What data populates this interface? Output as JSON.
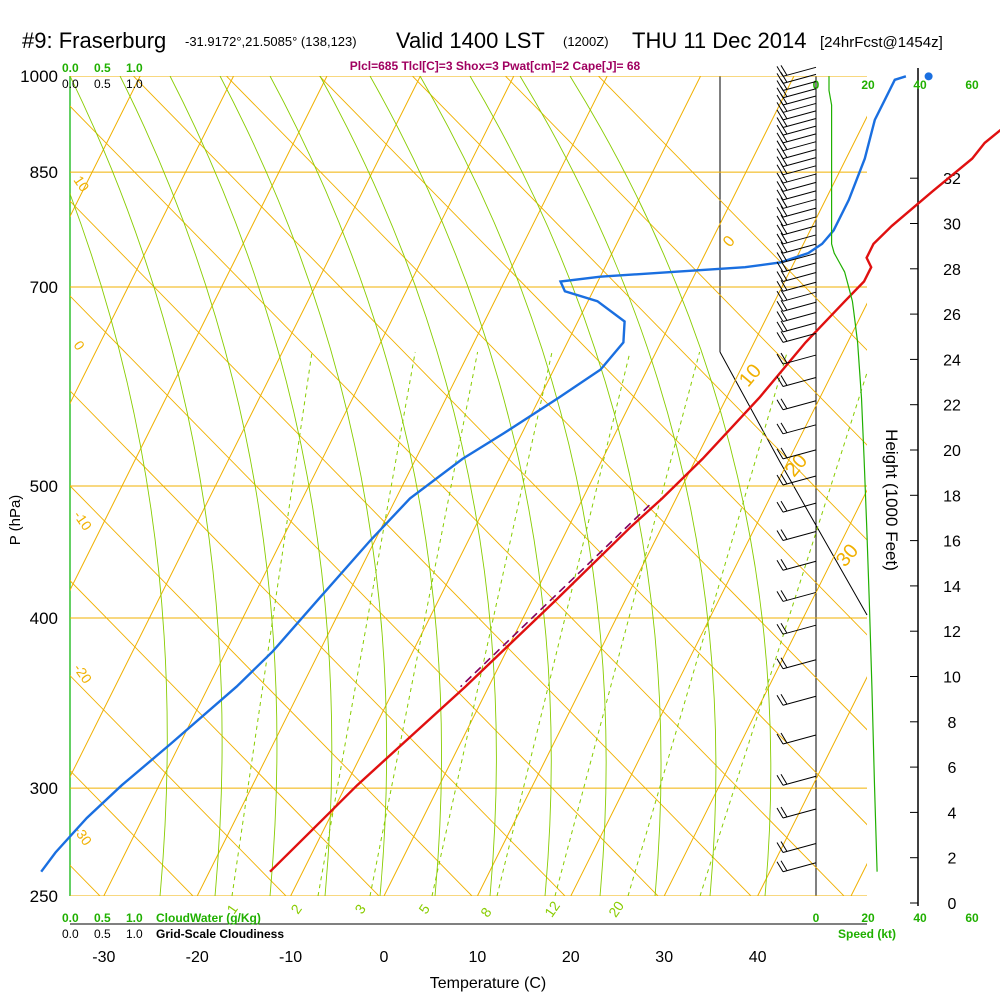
{
  "header": {
    "station": "#9: Fraserburg",
    "coords": "-31.9172°,21.5085° (138,123)",
    "valid": "Valid 1400 LST",
    "zulu": "(1200Z)",
    "date": "THU 11 Dec 2014",
    "fcst": "[24hrFcst@1454z]"
  },
  "indices_line": "Plcl=685 Tlcl[C]=3 Shox=3 Pwat[cm]=2 Cape[J]= 68",
  "colors": {
    "temperature": "#e01010",
    "dewpoint": "#1a6fe0",
    "parcel": "#800060",
    "isotherm": "#f0b000",
    "mixing_ratio": "#88cc00",
    "green_text": "#20b000",
    "indices": "#a00060"
  },
  "chart_data": {
    "type": "skew-t",
    "xlabel": "Temperature (C)",
    "ylabel": "P (hPa)",
    "right_axis_label": "Height (1000 Feet)",
    "x_ticks": [
      "-30",
      "-20",
      "-10",
      "0",
      "10",
      "20",
      "30",
      "40"
    ],
    "p_ticks": [
      "250",
      "300",
      "400",
      "500",
      "700",
      "850",
      "1000"
    ],
    "height_ticks": [
      "0",
      "2",
      "4",
      "6",
      "8",
      "10",
      "12",
      "14",
      "16",
      "18",
      "20",
      "22",
      "24",
      "26",
      "28",
      "30",
      "32"
    ],
    "cloud_scale_top": [
      "0.0",
      "0.5",
      "1.0"
    ],
    "cloud_scale_bottom": [
      "0.0",
      "0.5",
      "1.0"
    ],
    "cloudwater_label": "CloudWater (g/Kg)",
    "cloudiness_label": "Grid-Scale Cloudiness",
    "speed_ticks": [
      "0",
      "20",
      "40",
      "60"
    ],
    "speed_label": "Speed (kt)",
    "mixing_ratio_labels": [
      "1",
      "2",
      "3",
      "5",
      "8",
      "12",
      "20"
    ],
    "isotherm_labels_left": [
      "10",
      "0",
      "-10",
      "-20",
      "-30"
    ],
    "isotherm_labels_right": [
      "0",
      "10",
      "20",
      "30"
    ],
    "temperature_profile": [
      [
        910,
        31.5
      ],
      [
        905,
        30
      ],
      [
        890,
        28.5
      ],
      [
        870,
        27
      ],
      [
        850,
        25.8
      ],
      [
        820,
        24
      ],
      [
        800,
        23.5
      ],
      [
        760,
        21
      ],
      [
        720,
        18.5
      ],
      [
        700,
        17.5
      ],
      [
        685,
        17.5
      ],
      [
        675,
        18.5
      ],
      [
        660,
        18.5
      ],
      [
        640,
        17.5
      ],
      [
        600,
        15.5
      ],
      [
        550,
        13.5
      ],
      [
        500,
        10.7
      ],
      [
        470,
        8.5
      ],
      [
        450,
        6.7
      ],
      [
        400,
        2.5
      ],
      [
        350,
        -2.5
      ],
      [
        300,
        -8.8
      ],
      [
        280,
        -11.2
      ],
      [
        262,
        -13.5
      ]
    ],
    "dewpoint_profile": [
      [
        910,
        12
      ],
      [
        905,
        11
      ],
      [
        880,
        11
      ],
      [
        850,
        11
      ],
      [
        800,
        12
      ],
      [
        750,
        12.5
      ],
      [
        715,
        12.5
      ],
      [
        700,
        12
      ],
      [
        690,
        11
      ],
      [
        680,
        8.5
      ],
      [
        675,
        5
      ],
      [
        670,
        -2.5
      ],
      [
        665,
        -10
      ],
      [
        660,
        -14
      ],
      [
        650,
        -13
      ],
      [
        640,
        -9
      ],
      [
        620,
        -5
      ],
      [
        600,
        -4
      ],
      [
        575,
        -5
      ],
      [
        550,
        -8
      ],
      [
        520,
        -12
      ],
      [
        500,
        -15
      ],
      [
        470,
        -18.5
      ],
      [
        440,
        -20.5
      ],
      [
        400,
        -23
      ],
      [
        370,
        -25
      ],
      [
        350,
        -27
      ],
      [
        320,
        -31
      ],
      [
        300,
        -34
      ],
      [
        285,
        -36
      ],
      [
        270,
        -37.5
      ],
      [
        262,
        -38
      ]
    ],
    "parcel_profile": [
      [
        465,
        7.5
      ],
      [
        350,
        -3
      ]
    ],
    "surface_temperature": 33.5,
    "surface_dewpoint": 15.5,
    "wind_speed_profile": [
      [
        910,
        5
      ],
      [
        890,
        5
      ],
      [
        870,
        6
      ],
      [
        850,
        6
      ],
      [
        800,
        6
      ],
      [
        750,
        6
      ],
      [
        720,
        6
      ],
      [
        700,
        6
      ],
      [
        690,
        7
      ],
      [
        680,
        9
      ],
      [
        670,
        11
      ],
      [
        660,
        12
      ],
      [
        650,
        13
      ],
      [
        640,
        14
      ],
      [
        630,
        14.5
      ],
      [
        620,
        15
      ],
      [
        600,
        16
      ],
      [
        550,
        17.5
      ],
      [
        500,
        18.5
      ],
      [
        450,
        19.5
      ],
      [
        400,
        20.5
      ],
      [
        350,
        21.5
      ],
      [
        300,
        22.5
      ],
      [
        262,
        23.5
      ]
    ],
    "wind_barb_levels": [
      910,
      900,
      890,
      880,
      870,
      860,
      850,
      840,
      830,
      820,
      810,
      800,
      790,
      780,
      770,
      760,
      750,
      740,
      730,
      720,
      710,
      700,
      690,
      680,
      670,
      660,
      650,
      640,
      630,
      620,
      610,
      600,
      580,
      560,
      540,
      520,
      500,
      480,
      460,
      440,
      420,
      400,
      380,
      360,
      340,
      320,
      300,
      285,
      270,
      262
    ]
  }
}
